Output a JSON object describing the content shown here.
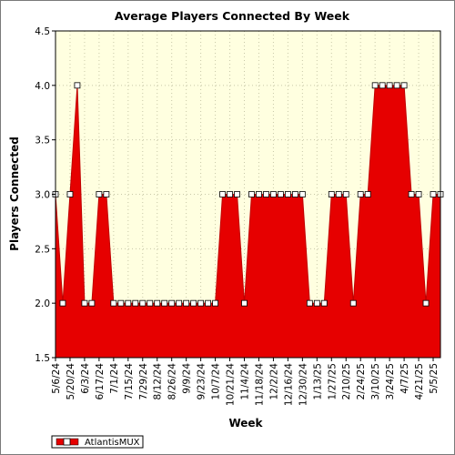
{
  "chart_data": {
    "type": "area",
    "title": "Average Players Connected By Week",
    "xlabel": "Week",
    "ylabel": "Players Connected",
    "ylim": [
      1.5,
      4.5
    ],
    "yticks": [
      1.5,
      2.0,
      2.5,
      3.0,
      3.5,
      4.0,
      4.5
    ],
    "ytick_labels": [
      "1.5",
      "2.0",
      "2.5",
      "3.0",
      "3.5",
      "4.0",
      "4.5"
    ],
    "x": [
      "5/6/24",
      "5/13/24",
      "5/20/24",
      "5/27/24",
      "6/3/24",
      "6/10/24",
      "6/17/24",
      "6/24/24",
      "7/1/24",
      "7/8/24",
      "7/15/24",
      "7/22/24",
      "7/29/24",
      "8/5/24",
      "8/12/24",
      "8/19/24",
      "8/26/24",
      "9/2/24",
      "9/9/24",
      "9/16/24",
      "9/23/24",
      "9/30/24",
      "10/7/24",
      "10/14/24",
      "10/21/24",
      "10/28/24",
      "11/4/24",
      "11/11/24",
      "11/18/24",
      "11/25/24",
      "12/2/24",
      "12/9/24",
      "12/16/24",
      "12/23/24",
      "12/30/24",
      "1/6/25",
      "1/13/25",
      "1/20/25",
      "1/27/25",
      "2/3/25",
      "2/10/25",
      "2/17/25",
      "2/24/25",
      "3/3/25",
      "3/10/25",
      "3/17/25",
      "3/24/25",
      "3/31/25",
      "4/7/25",
      "4/14/25",
      "4/21/25",
      "4/28/25",
      "5/5/25",
      "5/12/25"
    ],
    "xtick_labels": [
      "5/6/24",
      "5/20/24",
      "6/3/24",
      "6/17/24",
      "7/1/24",
      "7/15/24",
      "7/29/24",
      "8/12/24",
      "8/26/24",
      "9/9/24",
      "9/23/24",
      "10/7/24",
      "10/21/24",
      "11/4/24",
      "11/18/24",
      "12/2/24",
      "12/16/24",
      "12/30/24",
      "1/13/25",
      "1/27/25",
      "2/10/25",
      "2/24/25",
      "3/10/25",
      "3/24/25",
      "4/7/25",
      "4/21/25",
      "5/5/25"
    ],
    "series": [
      {
        "name": "AtlantisMUX",
        "color": "#e60000",
        "values": [
          3,
          2,
          3,
          4,
          2,
          2,
          3,
          3,
          2,
          2,
          2,
          2,
          2,
          2,
          2,
          2,
          2,
          2,
          2,
          2,
          2,
          2,
          2,
          3,
          3,
          3,
          2,
          3,
          3,
          3,
          3,
          3,
          3,
          3,
          3,
          2,
          2,
          2,
          3,
          3,
          3,
          2,
          3,
          3,
          4,
          4,
          4,
          4,
          4,
          3,
          3,
          2,
          3,
          3
        ]
      }
    ],
    "grid": true,
    "legend": "bottom-left",
    "plot_background": "#ffffe0"
  }
}
